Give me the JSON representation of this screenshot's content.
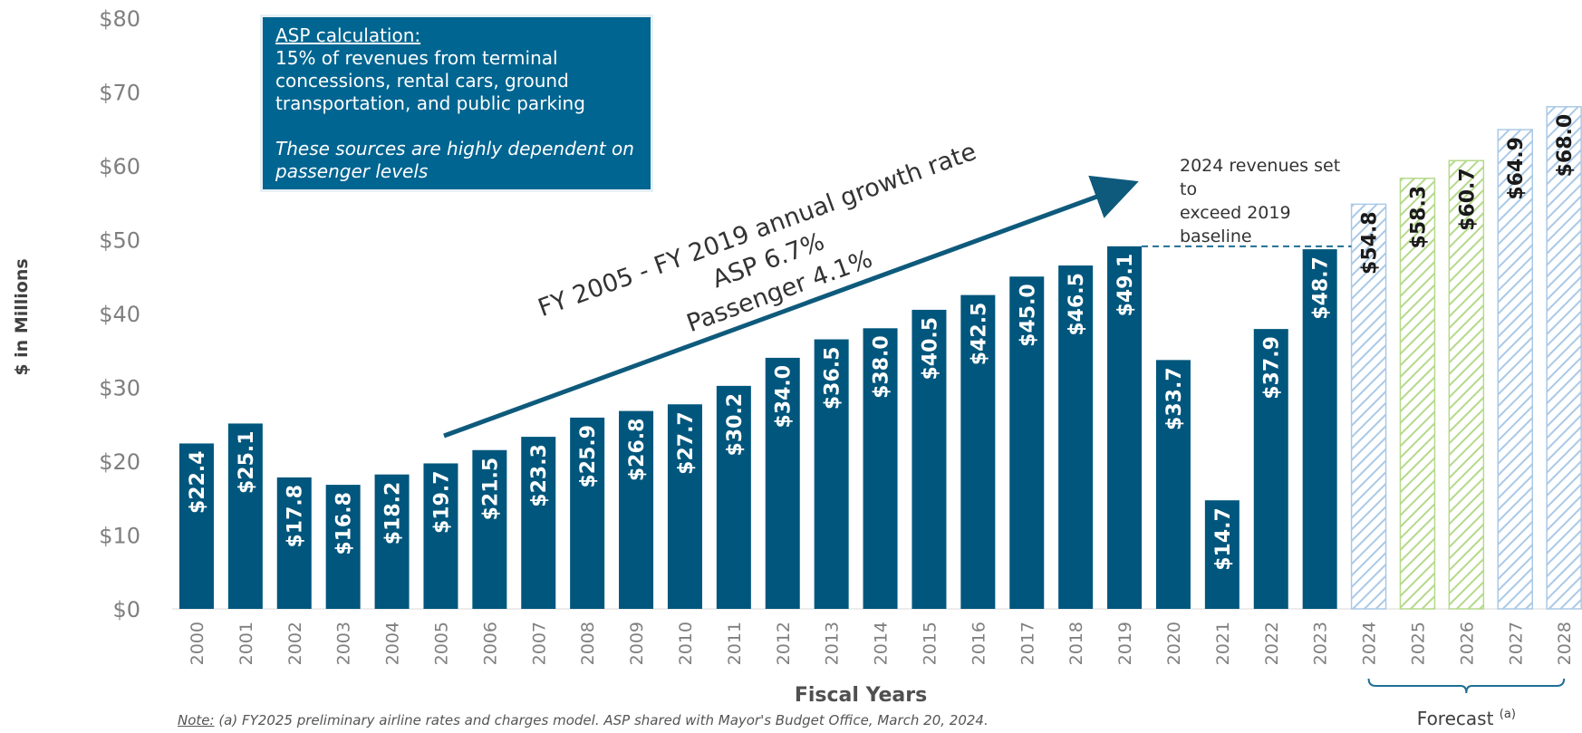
{
  "chart_data": {
    "type": "bar",
    "title": "",
    "xlabel": "Fiscal Years",
    "ylabel": "$ in Millions",
    "ylim": [
      0,
      80
    ],
    "yticks": [
      0,
      10,
      20,
      30,
      40,
      50,
      60,
      70,
      80
    ],
    "ytick_labels": [
      "$0",
      "$10",
      "$20",
      "$30",
      "$40",
      "$50",
      "$60",
      "$70",
      "$80"
    ],
    "categories": [
      "2000",
      "2001",
      "2002",
      "2003",
      "2004",
      "2005",
      "2006",
      "2007",
      "2008",
      "2009",
      "2010",
      "2011",
      "2012",
      "2013",
      "2014",
      "2015",
      "2016",
      "2017",
      "2018",
      "2019",
      "2020",
      "2021",
      "2022",
      "2023",
      "2024",
      "2025",
      "2026",
      "2027",
      "2028"
    ],
    "values": [
      22.4,
      25.1,
      17.8,
      16.8,
      18.2,
      19.7,
      21.5,
      23.3,
      25.9,
      26.8,
      27.7,
      30.2,
      34.0,
      36.5,
      38.0,
      40.5,
      42.5,
      45.0,
      46.5,
      49.1,
      33.7,
      14.7,
      37.9,
      48.7,
      54.8,
      58.3,
      60.7,
      64.9,
      68.0
    ],
    "labels": [
      "$22.4",
      "$25.1",
      "$17.8",
      "$16.8",
      "$18.2",
      "$19.7",
      "$21.5",
      "$23.3",
      "$25.9",
      "$26.8",
      "$27.7",
      "$30.2",
      "$34.0",
      "$36.5",
      "$38.0",
      "$40.5",
      "$42.5",
      "$45.0",
      "$46.5",
      "$49.1",
      "$33.7",
      "$14.7",
      "$37.9",
      "$48.7",
      "$54.8",
      "$58.3",
      "$60.7",
      "$64.9",
      "$68.0"
    ],
    "bar_style": [
      "solid",
      "solid",
      "solid",
      "solid",
      "solid",
      "solid",
      "solid",
      "solid",
      "solid",
      "solid",
      "solid",
      "solid",
      "solid",
      "solid",
      "solid",
      "solid",
      "solid",
      "solid",
      "solid",
      "solid",
      "solid",
      "solid",
      "solid",
      "solid",
      "hatch-blue",
      "hatch-green",
      "hatch-green",
      "hatch-blue",
      "hatch-blue"
    ],
    "grid": false,
    "baseline_reference": {
      "value": 49.1,
      "from": "2019",
      "to": "2024"
    },
    "forecast_bracket": {
      "from": "2024",
      "to": "2028",
      "label": "Forecast",
      "superscript": "(a)"
    },
    "growth_annotation": {
      "line1": "FY 2005 - FY 2019 annual growth rate",
      "line2": "ASP 6.7%",
      "line3": "Passenger 4.1%"
    }
  },
  "annotations": {
    "revenue_note": {
      "line1": "2024 revenues set to",
      "line2": "exceed 2019",
      "line3": "baseline"
    }
  },
  "callout": {
    "title": "ASP calculation:",
    "body": "15% of revenues from terminal concessions, rental cars, ground transportation, and public parking",
    "italic": "These sources are highly dependent on passenger levels"
  },
  "footnote": {
    "prefix": "Note:",
    "text": " (a) FY2025 preliminary airline rates and charges model. ASP shared with Mayor's Budget Office, March 20, 2024."
  },
  "colors": {
    "bar": "#00567c",
    "hatch_blue": "#aac9e6",
    "hatch_green": "#b5d98a",
    "text": "#7f7f7f",
    "callout_bg": "#006591"
  }
}
